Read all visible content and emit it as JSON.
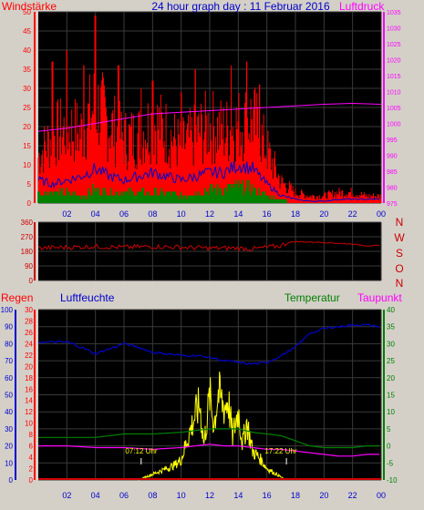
{
  "header": {
    "title": "24 hour graph day : 11 Februar 2016",
    "left_label": "Windstärke",
    "right_label": "Luftdruck"
  },
  "direction_labels": [
    "N",
    "W",
    "S",
    "O",
    "N"
  ],
  "bottom_labels": {
    "rain": "Regen",
    "humidity": "Luftfeuchte",
    "temperature": "Temperatur",
    "dewpoint": "Taupunkt"
  },
  "sun_labels": [
    "07:12 Uhr",
    "17:22 Uhr"
  ],
  "colors": {
    "wind_gust": "#ff0000",
    "wind_avg": "#0000cc",
    "wind_min": "#008000",
    "pressure": "#ff00ff",
    "direction": "#cc0000",
    "humidity": "#0000cc",
    "temperature": "#008000",
    "dewpoint": "#ff00ff",
    "solar": "#ffff00",
    "rain": "#cc0000"
  },
  "chart_data": [
    {
      "type": "line",
      "id": "wind_pressure",
      "title": "24 hour graph day : 11 Februar 2016",
      "x_ticks": [
        "02",
        "04",
        "06",
        "08",
        "10",
        "12",
        "14",
        "16",
        "18",
        "20",
        "22",
        "00"
      ],
      "xlim_hours": [
        0,
        24
      ],
      "ylim_left": [
        0,
        50
      ],
      "y_ticks_left": [
        0,
        5,
        10,
        15,
        20,
        25,
        30,
        35,
        40,
        45,
        50
      ],
      "ylim_right": [
        975,
        1035
      ],
      "y_ticks_right": [
        975,
        980,
        985,
        990,
        995,
        1000,
        1005,
        1010,
        1015,
        1020,
        1025,
        1030,
        1035
      ],
      "series": [
        {
          "name": "Windstärke",
          "axis": "left",
          "style": "spiky",
          "x": [
            0,
            1,
            2,
            3,
            4,
            5,
            6,
            7,
            8,
            9,
            10,
            11,
            12,
            13,
            14,
            15,
            16,
            17,
            18,
            19,
            20,
            21,
            22,
            23,
            24
          ],
          "y": [
            13,
            19,
            21,
            20,
            28,
            22,
            18,
            19,
            23,
            20,
            16,
            19,
            22,
            20,
            22,
            24,
            15,
            6,
            3,
            2,
            2,
            3,
            3,
            2,
            2
          ],
          "peaks": [
            [
              4.0,
              49
            ],
            [
              2.0,
              40
            ],
            [
              1.0,
              37
            ],
            [
              3.2,
              36
            ],
            [
              5.6,
              36
            ],
            [
              14.6,
              37
            ],
            [
              13.5,
              36
            ],
            [
              11.0,
              35
            ],
            [
              8.0,
              32
            ],
            [
              15.5,
              31
            ],
            [
              7.2,
              30
            ],
            [
              10.0,
              29
            ]
          ]
        },
        {
          "name": "Windmittel",
          "axis": "left",
          "x": [
            0,
            1,
            2,
            3,
            4,
            5,
            6,
            7,
            8,
            9,
            10,
            11,
            12,
            13,
            14,
            15,
            16,
            17,
            18,
            19,
            20,
            21,
            22,
            23,
            24
          ],
          "y": [
            6,
            5,
            6,
            7,
            9,
            7,
            6,
            7,
            8,
            7,
            6,
            7,
            8,
            8,
            10,
            9,
            5,
            2,
            1,
            0.5,
            0.5,
            1,
            1,
            1,
            1
          ]
        },
        {
          "name": "Windmin",
          "axis": "left",
          "style": "blocky",
          "x": [
            0,
            1,
            2,
            3,
            4,
            5,
            6,
            7,
            8,
            9,
            10,
            11,
            12,
            13,
            14,
            15,
            16,
            17,
            18,
            19,
            20,
            21,
            22,
            23,
            24
          ],
          "y": [
            3,
            3,
            3,
            2,
            4,
            3,
            3,
            3,
            3,
            3,
            2,
            3,
            4,
            4,
            5,
            4,
            2,
            1,
            0,
            0,
            0,
            0,
            0,
            0,
            0
          ]
        },
        {
          "name": "Luftdruck",
          "axis": "right",
          "x": [
            0,
            2,
            4,
            6,
            8,
            10,
            12,
            14,
            16,
            18,
            20,
            22,
            24
          ],
          "y": [
            997.5,
            998.5,
            1000,
            1001.5,
            1003,
            1003.5,
            1004,
            1004.5,
            1005,
            1005.5,
            1006,
            1006.3,
            1006
          ]
        }
      ]
    },
    {
      "type": "line",
      "id": "wind_direction",
      "xlim_hours": [
        0,
        24
      ],
      "ylim": [
        0,
        360
      ],
      "y_ticks": [
        0,
        90,
        180,
        270,
        360
      ],
      "series": [
        {
          "name": "Windrichtung",
          "x": [
            0,
            2,
            4,
            6,
            8,
            10,
            12,
            14,
            15,
            16,
            17,
            17.5,
            18,
            20,
            22,
            23,
            24
          ],
          "y": [
            200,
            205,
            210,
            205,
            210,
            205,
            200,
            200,
            195,
            205,
            215,
            235,
            240,
            235,
            225,
            215,
            215
          ]
        }
      ]
    },
    {
      "type": "line",
      "id": "climate",
      "xlim_hours": [
        0,
        24
      ],
      "axes": {
        "humidity_ticks": [
          0,
          10,
          20,
          30,
          40,
          50,
          60,
          70,
          80,
          90,
          100
        ],
        "rain_ticks": [
          0,
          2,
          4,
          6,
          8,
          10,
          12,
          14,
          16,
          18,
          20,
          22,
          24,
          26,
          28,
          30
        ],
        "temp_ticks": [
          -10,
          -5,
          0,
          5,
          10,
          15,
          20,
          25,
          30,
          35,
          40
        ],
        "solar_ticks": [
          0,
          10,
          20,
          30,
          40,
          50,
          60,
          70,
          80,
          90,
          100
        ]
      },
      "series": [
        {
          "name": "Luftfeuchte",
          "axis": "humidity",
          "x": [
            0,
            2,
            3,
            4,
            5,
            6,
            7,
            8,
            9,
            10,
            11,
            12,
            13,
            14,
            15,
            16,
            17,
            18,
            19,
            20,
            21,
            22,
            23,
            24
          ],
          "y": [
            81,
            81,
            78,
            74,
            77,
            80,
            78,
            75,
            74,
            73,
            73,
            72,
            70,
            69,
            68,
            69,
            73,
            78,
            86,
            89,
            90,
            91,
            91,
            90
          ]
        },
        {
          "name": "Temperatur",
          "axis": "temp",
          "x": [
            0,
            2,
            4,
            6,
            8,
            10,
            11,
            12,
            13,
            14,
            15,
            16,
            17,
            18,
            19,
            20,
            21,
            22,
            23,
            24
          ],
          "y": [
            2.5,
            2.5,
            2.5,
            3.5,
            3.5,
            4,
            4.5,
            5,
            5,
            5,
            4,
            3.5,
            3,
            1.5,
            0,
            -0.5,
            -0.5,
            -0.5,
            0,
            0
          ]
        },
        {
          "name": "Taupunkt",
          "axis": "temp",
          "x": [
            0,
            2,
            4,
            6,
            8,
            10,
            11,
            12,
            13,
            14,
            15,
            16,
            17,
            18,
            19,
            20,
            21,
            22,
            23,
            24
          ],
          "y": [
            0,
            0,
            -0.5,
            -0.5,
            -1,
            -0.5,
            0,
            0.5,
            0,
            0,
            -0.5,
            -1,
            -1,
            -1.5,
            -2,
            -2.5,
            -3,
            -3,
            -2.5,
            -2.5
          ]
        },
        {
          "name": "Solar",
          "axis": "solar",
          "style": "spiky",
          "x": [
            7.0,
            7.5,
            8.0,
            8.5,
            9.0,
            9.5,
            10.0,
            10.5,
            11.0,
            11.3,
            11.6,
            12.0,
            12.3,
            12.6,
            13.0,
            13.3,
            13.6,
            14.0,
            14.3,
            14.6,
            15.0,
            15.5,
            16.0,
            16.5,
            17.0,
            17.3
          ],
          "y": [
            0,
            2,
            4,
            6,
            8,
            10,
            14,
            30,
            45,
            52,
            25,
            58,
            38,
            60,
            50,
            55,
            30,
            48,
            25,
            40,
            20,
            15,
            8,
            5,
            2,
            0
          ]
        },
        {
          "name": "Regen",
          "axis": "rain",
          "x": [
            0,
            24
          ],
          "y": [
            0,
            0
          ]
        }
      ]
    }
  ]
}
